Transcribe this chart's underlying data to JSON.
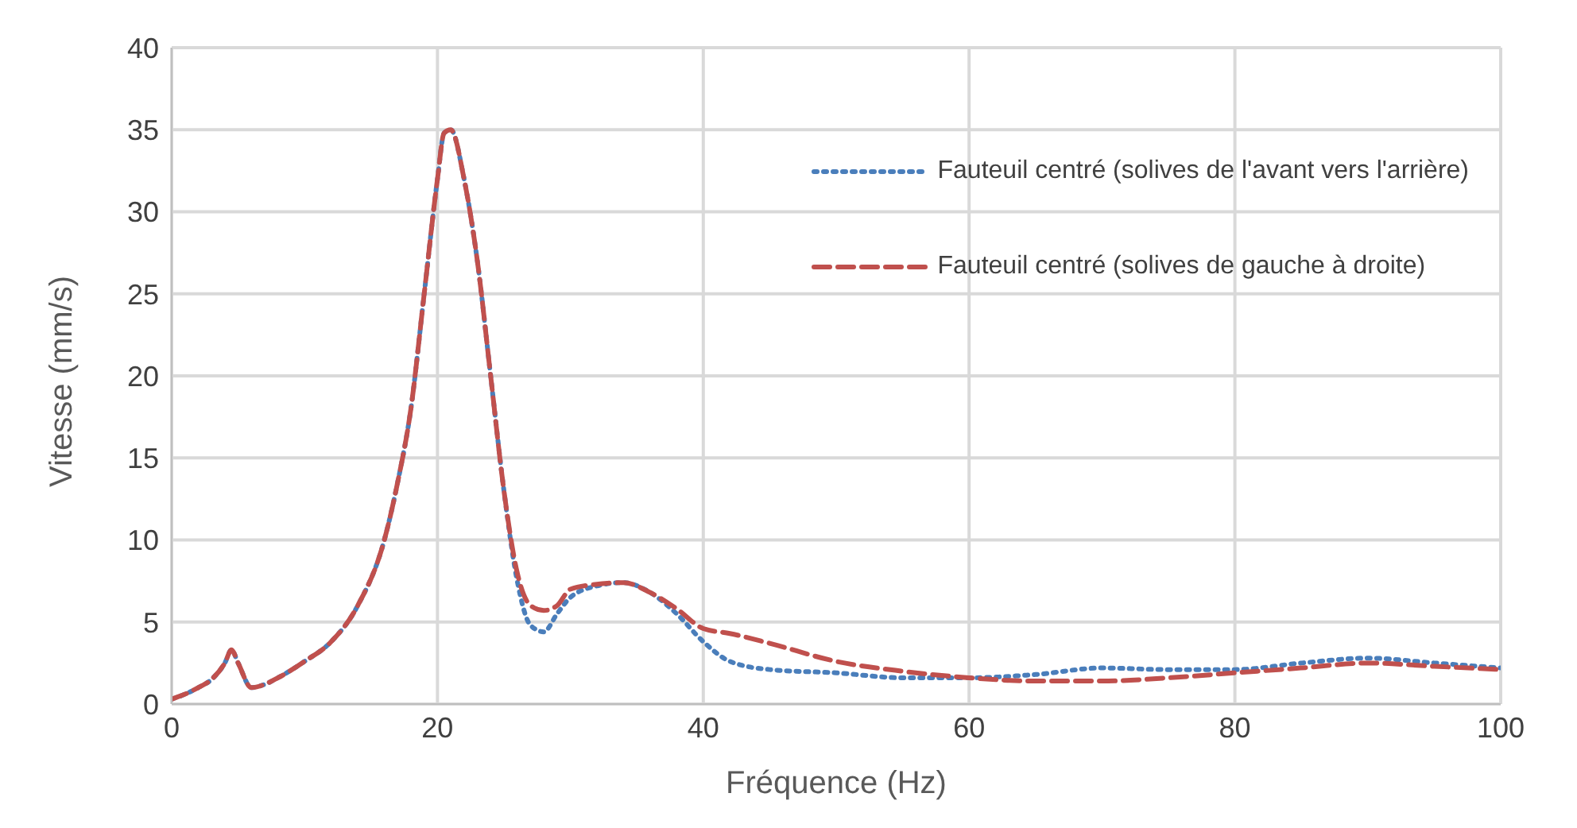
{
  "chart_data": {
    "type": "line",
    "xlabel": "Fréquence (Hz)",
    "ylabel": "Vitesse (mm/s)",
    "x": [
      0,
      1,
      2,
      3,
      4,
      4.5,
      5,
      6,
      7,
      8,
      10,
      12,
      14,
      16,
      17,
      18,
      19,
      20,
      20.5,
      21,
      22,
      23,
      24,
      25,
      26,
      27,
      28,
      29,
      30,
      32,
      34,
      36,
      38,
      40,
      42,
      45,
      50,
      55,
      60,
      65,
      70,
      75,
      80,
      85,
      90,
      95,
      100
    ],
    "series": [
      {
        "name": "Fauteuil centré (solives de l'avant vers l'arrière)",
        "color": "#4a7ebb",
        "line_style": "dotted",
        "values": [
          0.3,
          0.6,
          1.0,
          1.5,
          2.5,
          3.3,
          2.5,
          1.0,
          1.2,
          1.6,
          2.6,
          3.8,
          6.0,
          10,
          13.5,
          18,
          25,
          32,
          34.8,
          35,
          32,
          27,
          20,
          13,
          7.5,
          4.8,
          4.4,
          5.5,
          6.5,
          7.2,
          7.4,
          6.8,
          5.5,
          3.8,
          2.6,
          2.1,
          1.9,
          1.6,
          1.6,
          1.8,
          2.2,
          2.1,
          2.1,
          2.5,
          2.8,
          2.5,
          2.2
        ]
      },
      {
        "name": "Fauteuil centré (solives de gauche à droite)",
        "color": "#c0504d",
        "line_style": "dashed",
        "values": [
          0.3,
          0.6,
          1.0,
          1.5,
          2.5,
          3.3,
          2.5,
          1.0,
          1.2,
          1.6,
          2.6,
          3.8,
          6.0,
          10,
          13.5,
          18,
          25,
          32,
          34.8,
          35,
          32,
          27,
          20,
          13,
          8,
          6.0,
          5.7,
          6.0,
          7.0,
          7.3,
          7.4,
          6.8,
          5.8,
          4.6,
          4.3,
          3.7,
          2.6,
          2.0,
          1.6,
          1.4,
          1.4,
          1.6,
          1.9,
          2.2,
          2.5,
          2.3,
          2.1
        ]
      }
    ],
    "xlim": [
      0,
      100
    ],
    "xticks": [
      0,
      20,
      40,
      60,
      80,
      100
    ],
    "ylim": [
      0,
      40
    ],
    "yticks": [
      0,
      5,
      10,
      15,
      20,
      25,
      30,
      35,
      40
    ],
    "grid": true,
    "legend": "top right",
    "marker": "none"
  }
}
